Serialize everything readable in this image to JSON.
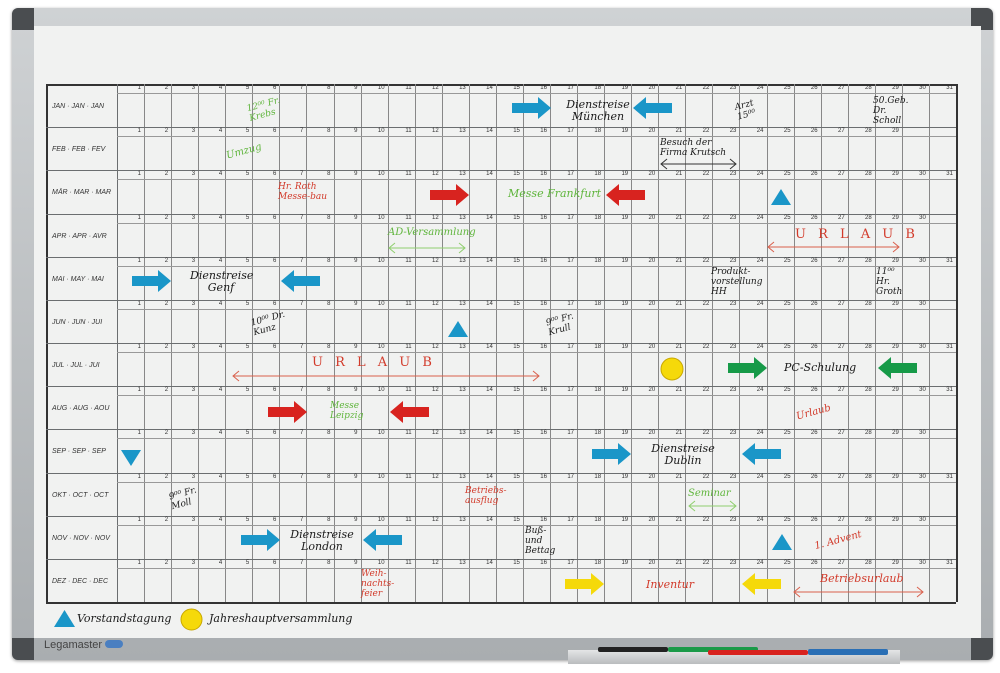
{
  "months": [
    {
      "label": "JAN · JAN · JAN",
      "days": 31
    },
    {
      "label": "FEB · FEB · FEV",
      "days": 29
    },
    {
      "label": "MÄR · MAR · MAR",
      "days": 31
    },
    {
      "label": "APR · APR · AVR",
      "days": 30
    },
    {
      "label": "MAI · MAY · MAI",
      "days": 31
    },
    {
      "label": "JUN · JUN · JUI",
      "days": 30
    },
    {
      "label": "JUL · JUL · JUI",
      "days": 31
    },
    {
      "label": "AUG · AUG · AOU",
      "days": 31
    },
    {
      "label": "SEP · SEP · SEP",
      "days": 30
    },
    {
      "label": "OKT · OCT · OCT",
      "days": 31
    },
    {
      "label": "NOV · NOV · NOV",
      "days": 30
    },
    {
      "label": "DEZ · DEC · DEC",
      "days": 31
    }
  ],
  "annotations": [
    {
      "text": "12⁰⁰ Fr. Krebs",
      "color": "green"
    },
    {
      "text": "Dienstreise München",
      "color": "black"
    },
    {
      "text": "Arzt 15⁰⁰",
      "color": "black"
    },
    {
      "text": "50.Geb. Dr. Scholl",
      "color": "black"
    },
    {
      "text": "Umzug",
      "color": "green"
    },
    {
      "text": "Besuch der Firma Krutsch",
      "color": "black"
    },
    {
      "text": "Hr. Roth Messe-bau",
      "color": "red"
    },
    {
      "text": "Messe Frankfurt",
      "color": "green"
    },
    {
      "text": "AD-Versammlung",
      "color": "green"
    },
    {
      "text": "U R L A U B",
      "color": "red"
    },
    {
      "text": "Dienstreise Genf",
      "color": "black"
    },
    {
      "text": "Produkt-vorstellung HH",
      "color": "black"
    },
    {
      "text": "11⁰⁰ Hr. Groth",
      "color": "black"
    },
    {
      "text": "10⁰⁰ Dr. Kunz",
      "color": "black"
    },
    {
      "text": "9⁰⁰ Fr. Krull",
      "color": "black"
    },
    {
      "text": "U R L A U B",
      "color": "red"
    },
    {
      "text": "PC-Schulung",
      "color": "black"
    },
    {
      "text": "Messe Leipzig",
      "color": "green"
    },
    {
      "text": "Urlaub",
      "color": "red"
    },
    {
      "text": "Dienstreise Dublin",
      "color": "black"
    },
    {
      "text": "9⁰⁰ Fr. Moll",
      "color": "black"
    },
    {
      "text": "Betriebs-ausflug",
      "color": "red"
    },
    {
      "text": "Seminar",
      "color": "green"
    },
    {
      "text": "Dienstreise London",
      "color": "black"
    },
    {
      "text": "Buß- und Bettag",
      "color": "black"
    },
    {
      "text": "1. Advent",
      "color": "red"
    },
    {
      "text": "Weih-nachts-feier",
      "color": "red"
    },
    {
      "text": "Inventur",
      "color": "red"
    },
    {
      "text": "Betriebsurlaub",
      "color": "red"
    }
  ],
  "legend": [
    {
      "icon": "blue-triangle",
      "label": "Vorstandstagung"
    },
    {
      "icon": "yellow-circle",
      "label": "Jahreshauptversammlung"
    }
  ],
  "brand": "Legamaster",
  "colors": {
    "blue": "#1a96c8",
    "red": "#d8231f",
    "green": "#169a48",
    "yellow": "#f5d90a",
    "marker_red": "#d23a2a",
    "marker_green": "#5fb53c"
  }
}
